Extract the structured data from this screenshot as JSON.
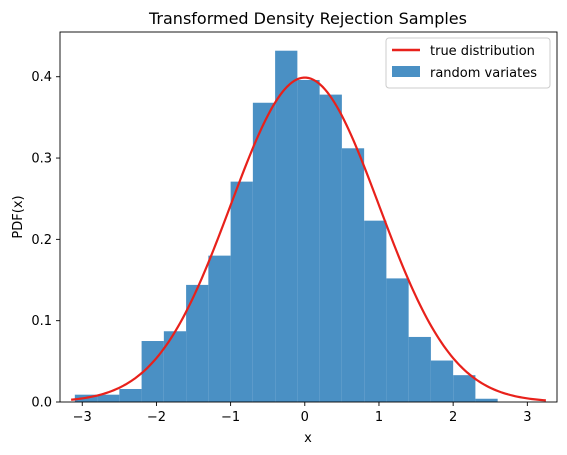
{
  "chart_data": {
    "type": "bar",
    "title": "Transformed Density Rejection Samples",
    "xlabel": "x",
    "ylabel": "PDF(x)",
    "xlim": [
      -3.3,
      3.4
    ],
    "ylim": [
      0,
      0.455
    ],
    "xticks": [
      -3,
      -2,
      -1,
      0,
      1,
      2,
      3
    ],
    "xtick_labels": [
      "−3",
      "−2",
      "−1",
      "0",
      "1",
      "2",
      "3"
    ],
    "yticks": [
      0.0,
      0.1,
      0.2,
      0.3,
      0.4
    ],
    "ytick_labels": [
      "0.0",
      "0.1",
      "0.2",
      "0.3",
      "0.4"
    ],
    "grid": false,
    "legend_position": "top-right",
    "histogram": {
      "name": "random variates",
      "color": "#4a90c4",
      "bin_edges": [
        -3.1,
        -2.8,
        -2.5,
        -2.2,
        -1.9,
        -1.6,
        -1.3,
        -1.0,
        -0.7,
        -0.4,
        -0.1,
        0.2,
        0.5,
        0.8,
        1.1,
        1.4,
        1.7,
        2.0,
        2.3,
        2.6
      ],
      "values": [
        0.009,
        0.009,
        0.016,
        0.075,
        0.087,
        0.144,
        0.18,
        0.271,
        0.368,
        0.432,
        0.396,
        0.378,
        0.312,
        0.223,
        0.152,
        0.08,
        0.051,
        0.033,
        0.004
      ]
    },
    "curve": {
      "name": "true distribution",
      "color": "#e8211b",
      "function": "standard normal pdf",
      "x_range": [
        -3.15,
        3.25
      ]
    }
  }
}
